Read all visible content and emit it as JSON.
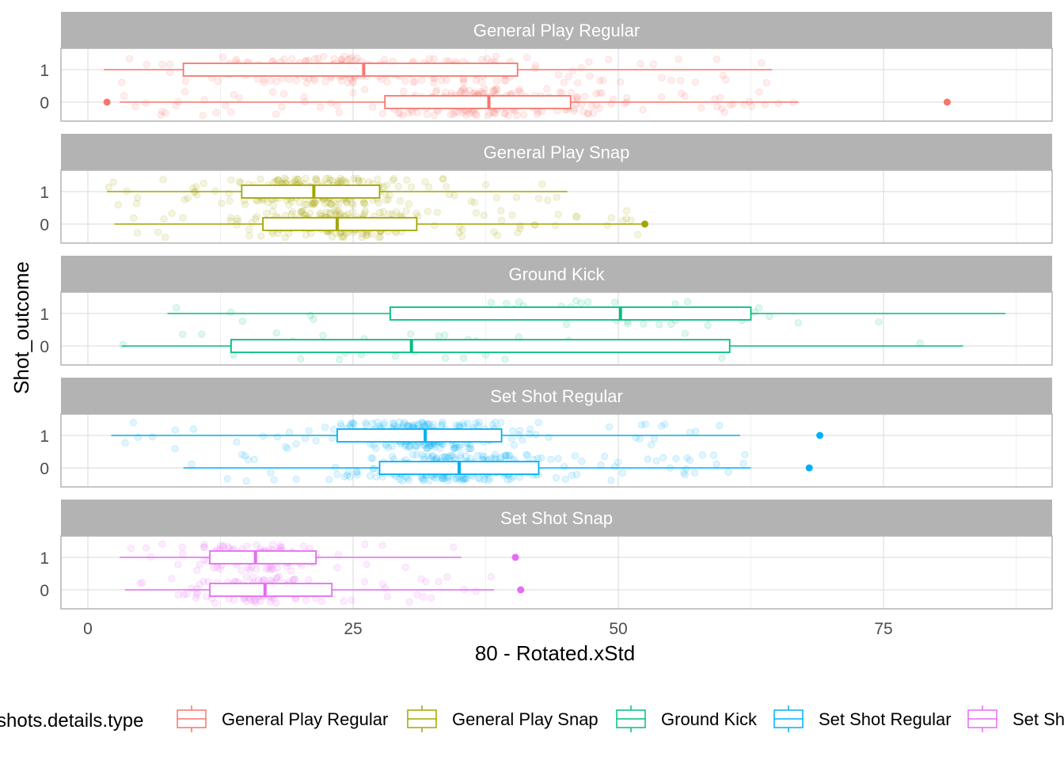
{
  "chart_data": {
    "type": "boxplot-jitter",
    "xlabel": "80 - Rotated.xStd",
    "ylabel": "Shot_outcome",
    "xlim": [
      -5,
      90
    ],
    "x_ticks": [
      0,
      25,
      50,
      75
    ],
    "x_tick_labels": [
      "0",
      "25",
      "50",
      "75"
    ],
    "y_categories": [
      "0",
      "1"
    ],
    "grid": true,
    "legend": {
      "title": "shots.details.type",
      "position": "bottom",
      "entries": [
        "General Play Regular",
        "General Play Snap",
        "Ground Kick",
        "Set Shot Regular",
        "Set Shot Snap"
      ]
    },
    "facets": [
      {
        "label": "General Play Regular",
        "color": "#F8766D",
        "point_density": 6,
        "boxes": [
          {
            "outcome": "1",
            "whisker_low": 1.5,
            "q1": 9,
            "median": 26,
            "q3": 40.5,
            "whisker_high": 64.5,
            "outliers": []
          },
          {
            "outcome": "0",
            "whisker_low": 3,
            "q1": 28,
            "median": 37.8,
            "q3": 45.5,
            "whisker_high": 67,
            "outliers": [
              1.8,
              81
            ]
          }
        ]
      },
      {
        "label": "General Play Snap",
        "color": "#A3A500",
        "point_density": 6,
        "boxes": [
          {
            "outcome": "1",
            "whisker_low": 1.8,
            "q1": 14.5,
            "median": 21.3,
            "q3": 27.5,
            "whisker_high": 45.2,
            "outliers": []
          },
          {
            "outcome": "0",
            "whisker_low": 2.5,
            "q1": 16.5,
            "median": 23.5,
            "q3": 31,
            "whisker_high": 52.5,
            "outliers": [
              52.5
            ]
          }
        ]
      },
      {
        "label": "Ground Kick",
        "color": "#00BF7D",
        "point_density": 1,
        "boxes": [
          {
            "outcome": "1",
            "whisker_low": 7.5,
            "q1": 28.5,
            "median": 50.2,
            "q3": 62.5,
            "whisker_high": 86.5,
            "outliers": []
          },
          {
            "outcome": "0",
            "whisker_low": 3.2,
            "q1": 13.5,
            "median": 30.5,
            "q3": 60.5,
            "whisker_high": 82.5,
            "outliers": []
          }
        ]
      },
      {
        "label": "Set Shot Regular",
        "color": "#00B0F6",
        "point_density": 7,
        "boxes": [
          {
            "outcome": "1",
            "whisker_low": 2.2,
            "q1": 23.5,
            "median": 31.8,
            "q3": 39,
            "whisker_high": 61.5,
            "outliers": [
              69
            ]
          },
          {
            "outcome": "0",
            "whisker_low": 9,
            "q1": 27.5,
            "median": 35,
            "q3": 42.5,
            "whisker_high": 62.5,
            "outliers": [
              68
            ]
          }
        ]
      },
      {
        "label": "Set Shot Snap",
        "color": "#E76BF3",
        "point_density": 3,
        "boxes": [
          {
            "outcome": "1",
            "whisker_low": 3,
            "q1": 11.5,
            "median": 15.8,
            "q3": 21.5,
            "whisker_high": 35.2,
            "outliers": [
              40.3
            ]
          },
          {
            "outcome": "0",
            "whisker_low": 3.5,
            "q1": 11.5,
            "median": 16.7,
            "q3": 23,
            "whisker_high": 38.3,
            "outliers": [
              40.8
            ]
          }
        ]
      }
    ]
  }
}
